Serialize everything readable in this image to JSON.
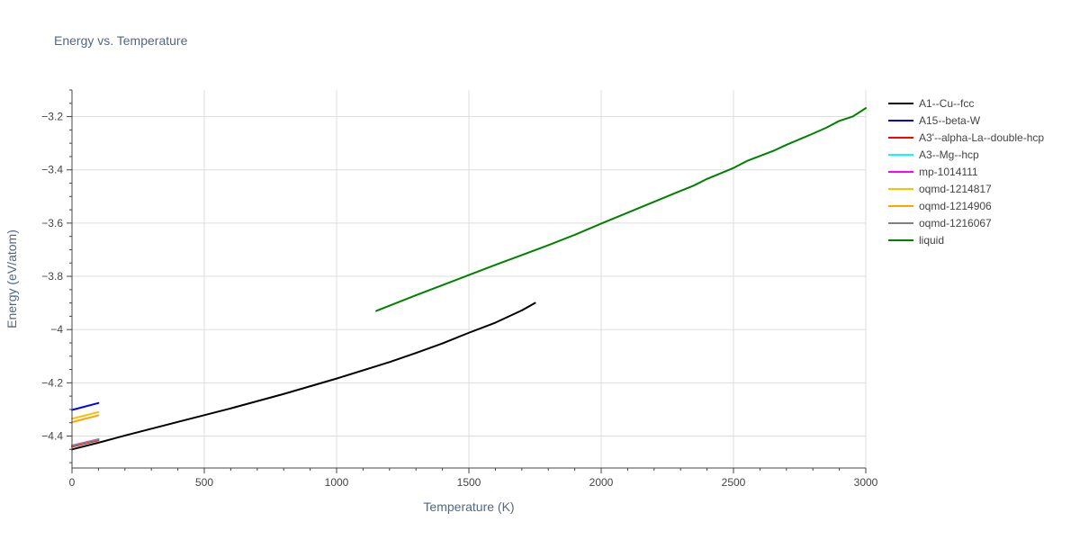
{
  "chart_data": {
    "type": "line",
    "title": "Energy vs. Temperature",
    "xlabel": "Temperature (K)",
    "ylabel": "Energy (eV/atom)",
    "xlim": [
      0,
      3000
    ],
    "ylim": [
      -4.52,
      -3.1
    ],
    "xticks": [
      0,
      500,
      1000,
      1500,
      2000,
      2500,
      3000
    ],
    "xtick_labels": [
      "0",
      "500",
      "1000",
      "1500",
      "2000",
      "2500",
      "3000"
    ],
    "yticks": [
      -4.4,
      -4.2,
      -4.0,
      -3.8,
      -3.6,
      -3.4,
      -3.2
    ],
    "ytick_labels": [
      "−4.4",
      "−4.2",
      "−4",
      "−3.8",
      "−3.6",
      "−3.4",
      "−3.2"
    ],
    "grid": true,
    "legend_position": "right",
    "series": [
      {
        "name": "A1--Cu--fcc",
        "color": "#000000",
        "x": [
          0,
          100,
          200,
          400,
          600,
          800,
          1000,
          1200,
          1300,
          1400,
          1500,
          1600,
          1700,
          1750
        ],
        "y": [
          -4.45,
          -4.425,
          -4.398,
          -4.347,
          -4.296,
          -4.242,
          -4.184,
          -4.122,
          -4.088,
          -4.052,
          -4.012,
          -3.974,
          -3.928,
          -3.9
        ]
      },
      {
        "name": "A15--beta-W",
        "color": "#0000ff",
        "x": [
          0,
          100
        ],
        "y": [
          -4.302,
          -4.276
        ]
      },
      {
        "name": "A3'--alpha-La--double-hcp",
        "color": "#ff0000",
        "x": [
          0,
          100
        ],
        "y": [
          -4.44,
          -4.416
        ]
      },
      {
        "name": "A3--Mg--hcp",
        "color": "#00ffff",
        "x": [
          0,
          100
        ],
        "y": [
          -4.437,
          -4.413
        ]
      },
      {
        "name": "mp-1014111",
        "color": "#ff00ff",
        "x": [
          0,
          100
        ],
        "y": [
          -4.436,
          -4.412
        ]
      },
      {
        "name": "oqmd-1214817",
        "color": "#ffc000",
        "x": [
          0,
          100
        ],
        "y": [
          -4.335,
          -4.31
        ]
      },
      {
        "name": "oqmd-1214906",
        "color": "#ffa500",
        "x": [
          0,
          100
        ],
        "y": [
          -4.348,
          -4.322
        ]
      },
      {
        "name": "oqmd-1216067",
        "color": "#808080",
        "x": [
          0,
          100
        ],
        "y": [
          -4.437,
          -4.413
        ]
      },
      {
        "name": "liquid",
        "color": "#008000",
        "x": [
          1150,
          1300,
          1500,
          1600,
          1700,
          1800,
          1900,
          2000,
          2100,
          2200,
          2300,
          2350,
          2400,
          2500,
          2550,
          2650,
          2700,
          2800,
          2850,
          2900,
          2950,
          3000
        ],
        "y": [
          -3.93,
          -3.871,
          -3.795,
          -3.757,
          -3.72,
          -3.683,
          -3.644,
          -3.602,
          -3.561,
          -3.52,
          -3.479,
          -3.459,
          -3.434,
          -3.393,
          -3.367,
          -3.329,
          -3.306,
          -3.264,
          -3.242,
          -3.216,
          -3.2,
          -3.168
        ]
      }
    ]
  }
}
